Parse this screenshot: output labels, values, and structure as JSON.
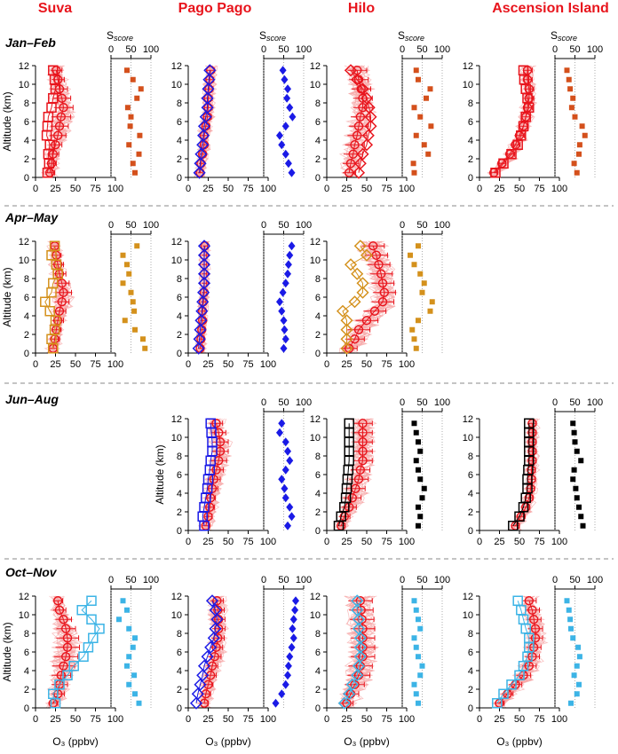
{
  "chart_data": {
    "type": "line",
    "sites": [
      "Suva",
      "Pago Pago",
      "Hilo",
      "Ascension Island"
    ],
    "seasons": [
      {
        "name": "Jan–Feb",
        "color": "#e8141c",
        "score_color": "#d4501c"
      },
      {
        "name": "Apr–May",
        "color": "#d4911c",
        "score_color": "#d4911c"
      },
      {
        "name": "Jun–Aug",
        "color": "#000000",
        "score_color": "#000000"
      },
      {
        "name": "Oct–Nov",
        "color": "#3cb4e6",
        "score_color": "#3cb4e6"
      }
    ],
    "ylabel": "Altitude (km)",
    "xlabel": "O₃ (ppbv)",
    "score_label": "S",
    "score_sub": "score",
    "xlim": [
      0,
      100
    ],
    "ylim": [
      0,
      12
    ],
    "xticks": [
      "0",
      "25",
      "50",
      "75",
      "100"
    ],
    "yticks": [
      "0",
      "2",
      "4",
      "6",
      "8",
      "10",
      "12"
    ],
    "score_ticks": [
      "0",
      "50",
      "100"
    ],
    "altitudes": [
      0.5,
      1.5,
      2.5,
      3.5,
      4.5,
      5.5,
      6.5,
      7.5,
      8.5,
      9.5,
      10.5,
      11.5
    ],
    "panels": [
      {
        "row": 0,
        "col": 0,
        "obs": [
          18,
          20,
          22,
          25,
          28,
          30,
          32,
          35,
          33,
          30,
          28,
          26
        ],
        "err": [
          6,
          6,
          7,
          8,
          10,
          11,
          12,
          12,
          11,
          10,
          8,
          7
        ],
        "sq": [
          15,
          17,
          16,
          18,
          14,
          15,
          16,
          20,
          22,
          25,
          24,
          22
        ],
        "score": [
          60,
          55,
          70,
          45,
          72,
          48,
          50,
          42,
          65,
          75,
          55,
          40
        ]
      },
      {
        "row": 0,
        "col": 1,
        "obs": [
          15,
          16,
          18,
          20,
          20,
          22,
          24,
          25,
          25,
          26,
          27,
          28
        ],
        "err": [
          3,
          3,
          4,
          4,
          4,
          5,
          5,
          5,
          5,
          5,
          5,
          5
        ],
        "sq": [
          14,
          15,
          16,
          18,
          19,
          20,
          22,
          24,
          24,
          25,
          26,
          27
        ],
        "score": [
          70,
          62,
          55,
          45,
          40,
          55,
          72,
          65,
          58,
          60,
          52,
          48
        ]
      },
      {
        "row": 0,
        "col": 2,
        "obs": [
          28,
          30,
          33,
          35,
          38,
          40,
          42,
          45,
          45,
          43,
          40,
          38
        ],
        "err": [
          8,
          10,
          12,
          12,
          12,
          12,
          12,
          12,
          12,
          12,
          12,
          12
        ],
        "sq": [
          40,
          42,
          45,
          50,
          52,
          55,
          55,
          53,
          50,
          45,
          38,
          30
        ],
        "score": [
          30,
          28,
          65,
          55,
          35,
          72,
          45,
          30,
          60,
          70,
          40,
          35
        ]
      },
      {
        "row": 0,
        "col": 3,
        "obs": [
          18,
          28,
          38,
          45,
          50,
          55,
          58,
          60,
          62,
          62,
          60,
          60
        ],
        "err": [
          4,
          5,
          6,
          6,
          6,
          6,
          6,
          6,
          6,
          6,
          6,
          6
        ],
        "sq": [
          20,
          30,
          40,
          48,
          52,
          55,
          58,
          62,
          60,
          58,
          56,
          55
        ],
        "score": [
          55,
          48,
          60,
          62,
          75,
          68,
          50,
          42,
          45,
          38,
          35,
          30
        ]
      },
      {
        "row": 1,
        "col": 0,
        "obs": [
          22,
          24,
          26,
          28,
          30,
          33,
          35,
          33,
          30,
          28,
          26,
          24
        ],
        "err": [
          5,
          6,
          6,
          7,
          8,
          9,
          10,
          9,
          8,
          7,
          6,
          5
        ],
        "sq": [
          22,
          20,
          24,
          25,
          18,
          12,
          20,
          22,
          28,
          26,
          20,
          24
        ],
        "score": [
          85,
          80,
          60,
          35,
          58,
          55,
          50,
          30,
          45,
          40,
          30,
          65
        ]
      },
      {
        "row": 1,
        "col": 1,
        "obs": [
          15,
          16,
          17,
          18,
          18,
          19,
          20,
          20,
          20,
          20,
          20,
          21
        ],
        "err": [
          3,
          3,
          3,
          3,
          3,
          3,
          3,
          3,
          3,
          3,
          3,
          3
        ],
        "sq": [
          13,
          14,
          15,
          16,
          17,
          18,
          19,
          20,
          20,
          20,
          20,
          20
        ],
        "score": [
          50,
          55,
          52,
          50,
          45,
          40,
          48,
          55,
          60,
          62,
          65,
          70
        ]
      },
      {
        "row": 1,
        "col": 2,
        "obs": [
          28,
          35,
          40,
          50,
          60,
          70,
          72,
          70,
          68,
          65,
          62,
          58
        ],
        "err": [
          10,
          12,
          14,
          14,
          14,
          14,
          14,
          14,
          14,
          14,
          14,
          14
        ],
        "sq": [
          25,
          25,
          25,
          25,
          20,
          35,
          45,
          45,
          38,
          30,
          50,
          42
        ],
        "score": [
          35,
          30,
          25,
          40,
          70,
          75,
          50,
          55,
          45,
          30,
          20,
          40
        ]
      },
      {
        "row": 2,
        "col": 1,
        "obs": [
          22,
          25,
          27,
          28,
          30,
          32,
          35,
          38,
          40,
          40,
          38,
          35
        ],
        "err": [
          5,
          5,
          6,
          6,
          7,
          8,
          9,
          10,
          10,
          10,
          9,
          8
        ],
        "sq": [
          20,
          18,
          20,
          22,
          24,
          25,
          27,
          28,
          30,
          30,
          29,
          28
        ],
        "score": [
          60,
          70,
          65,
          55,
          52,
          45,
          55,
          65,
          60,
          55,
          40,
          45
        ]
      },
      {
        "row": 2,
        "col": 2,
        "obs": [
          18,
          22,
          28,
          32,
          36,
          40,
          42,
          45,
          45,
          45,
          45,
          45
        ],
        "err": [
          5,
          7,
          9,
          11,
          12,
          12,
          12,
          12,
          12,
          12,
          12,
          12
        ],
        "sq": [
          15,
          18,
          22,
          24,
          25,
          26,
          27,
          28,
          28,
          28,
          28,
          28
        ],
        "score": [
          40,
          45,
          40,
          50,
          55,
          45,
          40,
          35,
          45,
          40,
          35,
          30
        ]
      },
      {
        "row": 2,
        "col": 3,
        "obs": [
          45,
          52,
          58,
          62,
          64,
          65,
          65,
          66,
          66,
          66,
          66,
          66
        ],
        "err": [
          5,
          5,
          5,
          5,
          5,
          5,
          5,
          5,
          5,
          5,
          5,
          5
        ],
        "sq": [
          42,
          50,
          55,
          58,
          60,
          60,
          61,
          62,
          62,
          62,
          62,
          62
        ],
        "score": [
          70,
          65,
          60,
          55,
          52,
          45,
          48,
          65,
          55,
          50,
          48,
          45
        ]
      },
      {
        "row": 3,
        "col": 0,
        "obs": [
          22,
          28,
          30,
          32,
          35,
          38,
          40,
          40,
          38,
          35,
          30,
          28
        ],
        "err": [
          6,
          8,
          10,
          12,
          14,
          15,
          15,
          14,
          12,
          10,
          8,
          6
        ],
        "sq": [
          25,
          22,
          30,
          40,
          48,
          60,
          66,
          72,
          80,
          70,
          58,
          70
        ],
        "score": [
          70,
          60,
          45,
          58,
          40,
          45,
          55,
          60,
          45,
          20,
          40,
          30
        ]
      },
      {
        "row": 3,
        "col": 1,
        "obs": [
          20,
          22,
          25,
          28,
          30,
          33,
          35,
          37,
          38,
          38,
          37,
          36
        ],
        "err": [
          5,
          6,
          6,
          7,
          7,
          8,
          8,
          8,
          8,
          8,
          8,
          8
        ],
        "sq": [
          10,
          12,
          15,
          18,
          20,
          24,
          28,
          32,
          34,
          36,
          34,
          30
        ],
        "score": [
          30,
          45,
          55,
          60,
          62,
          65,
          70,
          75,
          72,
          75,
          78,
          80
        ]
      },
      {
        "row": 3,
        "col": 2,
        "obs": [
          25,
          30,
          35,
          40,
          42,
          45,
          45,
          45,
          45,
          44,
          43,
          42
        ],
        "err": [
          8,
          10,
          12,
          14,
          15,
          15,
          15,
          15,
          15,
          15,
          15,
          15
        ],
        "sq": [
          22,
          28,
          32,
          38,
          40,
          42,
          42,
          42,
          40,
          40,
          38,
          38
        ],
        "score": [
          40,
          35,
          30,
          45,
          50,
          40,
          35,
          30,
          45,
          40,
          35,
          30
        ]
      },
      {
        "row": 3,
        "col": 3,
        "obs": [
          25,
          35,
          45,
          55,
          62,
          66,
          68,
          70,
          70,
          68,
          66,
          62
        ],
        "err": [
          6,
          7,
          8,
          9,
          9,
          9,
          9,
          9,
          9,
          9,
          9,
          9
        ],
        "sq": [
          22,
          30,
          40,
          50,
          55,
          60,
          62,
          62,
          58,
          55,
          52,
          48
        ],
        "score": [
          40,
          55,
          60,
          48,
          55,
          62,
          58,
          45,
          40,
          38,
          35,
          30
        ]
      }
    ]
  }
}
